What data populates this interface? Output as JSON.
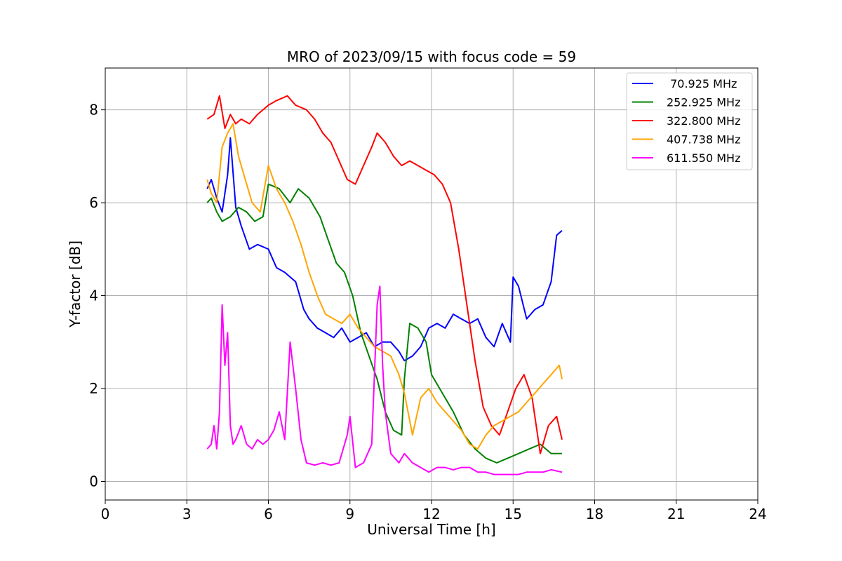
{
  "chart_data": {
    "type": "line",
    "title": "MRO of 2023/09/15 with focus code = 59",
    "xlabel": "Universal Time [h]",
    "ylabel": "Y-factor [dB]",
    "xlim": [
      0,
      24
    ],
    "ylim": [
      -0.4,
      8.9
    ],
    "xticks": [
      0,
      3,
      6,
      9,
      12,
      15,
      18,
      21,
      24
    ],
    "yticks": [
      0,
      2,
      4,
      6,
      8
    ],
    "grid": true,
    "legend_position": "top-right",
    "series": [
      {
        "name": " 70.925 MHz",
        "color": "#0000ff",
        "x": [
          3.75,
          3.9,
          4.1,
          4.3,
          4.5,
          4.6,
          4.8,
          5.0,
          5.3,
          5.6,
          6.0,
          6.3,
          6.6,
          7.0,
          7.3,
          7.5,
          7.8,
          8.1,
          8.4,
          8.7,
          9.0,
          9.3,
          9.6,
          9.9,
          10.2,
          10.5,
          10.8,
          11.0,
          11.3,
          11.6,
          11.9,
          12.2,
          12.5,
          12.8,
          13.1,
          13.4,
          13.7,
          14.0,
          14.3,
          14.6,
          14.9,
          15.0,
          15.2,
          15.5,
          15.8,
          16.1,
          16.4,
          16.6,
          16.8
        ],
        "y": [
          6.3,
          6.5,
          6.1,
          5.8,
          6.6,
          7.4,
          5.9,
          5.5,
          5.0,
          5.1,
          5.0,
          4.6,
          4.5,
          4.3,
          3.7,
          3.5,
          3.3,
          3.2,
          3.1,
          3.3,
          3.0,
          3.1,
          3.2,
          2.9,
          3.0,
          3.0,
          2.8,
          2.6,
          2.7,
          2.9,
          3.3,
          3.4,
          3.3,
          3.6,
          3.5,
          3.4,
          3.5,
          3.1,
          2.9,
          3.4,
          3.0,
          4.4,
          4.2,
          3.5,
          3.7,
          3.8,
          4.3,
          5.3,
          5.4
        ]
      },
      {
        "name": "252.925 MHz",
        "color": "#008000",
        "x": [
          3.75,
          3.9,
          4.1,
          4.3,
          4.6,
          4.9,
          5.2,
          5.5,
          5.8,
          6.0,
          6.4,
          6.8,
          7.1,
          7.5,
          7.9,
          8.2,
          8.5,
          8.8,
          9.1,
          9.4,
          9.7,
          10.0,
          10.3,
          10.6,
          10.9,
          11.0,
          11.2,
          11.5,
          11.8,
          12.0,
          12.4,
          12.8,
          13.2,
          13.6,
          14.0,
          14.4,
          14.8,
          15.2,
          15.6,
          16.0,
          16.4,
          16.8
        ],
        "y": [
          6.0,
          6.1,
          5.8,
          5.6,
          5.7,
          5.9,
          5.8,
          5.6,
          5.7,
          6.4,
          6.3,
          6.0,
          6.3,
          6.1,
          5.7,
          5.2,
          4.7,
          4.5,
          4.0,
          3.2,
          2.7,
          2.2,
          1.5,
          1.1,
          1.0,
          2.2,
          3.4,
          3.3,
          3.0,
          2.3,
          1.9,
          1.5,
          1.0,
          0.7,
          0.5,
          0.4,
          0.5,
          0.6,
          0.7,
          0.8,
          0.6,
          0.6
        ]
      },
      {
        "name": "322.800 MHz",
        "color": "#ff0000",
        "x": [
          3.75,
          4.0,
          4.2,
          4.4,
          4.6,
          4.8,
          5.0,
          5.3,
          5.6,
          6.0,
          6.3,
          6.7,
          7.0,
          7.4,
          7.7,
          8.0,
          8.3,
          8.6,
          8.9,
          9.2,
          9.5,
          9.8,
          10.0,
          10.3,
          10.6,
          10.9,
          11.2,
          11.5,
          11.8,
          12.1,
          12.4,
          12.7,
          13.0,
          13.3,
          13.6,
          13.9,
          14.2,
          14.5,
          14.8,
          15.1,
          15.4,
          15.7,
          16.0,
          16.3,
          16.6,
          16.8
        ],
        "y": [
          7.8,
          7.9,
          8.3,
          7.6,
          7.9,
          7.7,
          7.8,
          7.7,
          7.9,
          8.1,
          8.2,
          8.3,
          8.1,
          8.0,
          7.8,
          7.5,
          7.3,
          6.9,
          6.5,
          6.4,
          6.8,
          7.2,
          7.5,
          7.3,
          7.0,
          6.8,
          6.9,
          6.8,
          6.7,
          6.6,
          6.4,
          6.0,
          5.0,
          3.8,
          2.6,
          1.6,
          1.2,
          1.0,
          1.5,
          2.0,
          2.3,
          1.8,
          0.6,
          1.2,
          1.4,
          0.9
        ]
      },
      {
        "name": "407.738 MHz",
        "color": "#ffa500",
        "x": [
          3.75,
          3.9,
          4.1,
          4.3,
          4.5,
          4.7,
          4.9,
          5.1,
          5.4,
          5.7,
          6.0,
          6.3,
          6.6,
          6.9,
          7.2,
          7.5,
          7.8,
          8.1,
          8.4,
          8.7,
          9.0,
          9.3,
          9.6,
          9.9,
          10.2,
          10.5,
          10.8,
          11.0,
          11.3,
          11.6,
          11.9,
          12.2,
          12.5,
          12.8,
          13.1,
          13.4,
          13.7,
          14.0,
          14.3,
          14.6,
          14.9,
          15.2,
          15.5,
          15.8,
          16.1,
          16.4,
          16.7,
          16.8
        ],
        "y": [
          6.5,
          6.2,
          6.0,
          7.2,
          7.5,
          7.7,
          7.0,
          6.6,
          6.0,
          5.8,
          6.8,
          6.3,
          6.0,
          5.6,
          5.1,
          4.5,
          4.0,
          3.6,
          3.5,
          3.4,
          3.6,
          3.3,
          3.1,
          2.9,
          2.8,
          2.7,
          2.3,
          1.9,
          1.0,
          1.8,
          2.0,
          1.7,
          1.5,
          1.3,
          1.1,
          0.8,
          0.7,
          1.0,
          1.2,
          1.3,
          1.4,
          1.5,
          1.7,
          1.9,
          2.1,
          2.3,
          2.5,
          2.2
        ]
      },
      {
        "name": "611.550 MHz",
        "color": "#ff00ff",
        "x": [
          3.75,
          3.9,
          4.0,
          4.1,
          4.2,
          4.3,
          4.4,
          4.5,
          4.6,
          4.7,
          4.8,
          5.0,
          5.2,
          5.4,
          5.6,
          5.8,
          6.0,
          6.2,
          6.4,
          6.6,
          6.8,
          7.0,
          7.2,
          7.4,
          7.7,
          8.0,
          8.3,
          8.6,
          8.9,
          9.0,
          9.2,
          9.5,
          9.8,
          10.0,
          10.1,
          10.2,
          10.3,
          10.5,
          10.8,
          11.0,
          11.3,
          11.6,
          11.9,
          12.2,
          12.5,
          12.8,
          13.1,
          13.4,
          13.7,
          14.0,
          14.3,
          14.6,
          14.9,
          15.2,
          15.5,
          15.8,
          16.1,
          16.4,
          16.8
        ],
        "y": [
          0.7,
          0.8,
          1.2,
          0.7,
          1.5,
          3.8,
          2.5,
          3.2,
          1.2,
          0.8,
          0.9,
          1.2,
          0.8,
          0.7,
          0.9,
          0.8,
          0.9,
          1.1,
          1.5,
          0.9,
          3.0,
          2.0,
          0.9,
          0.4,
          0.35,
          0.4,
          0.35,
          0.4,
          1.0,
          1.4,
          0.3,
          0.4,
          0.8,
          3.8,
          4.2,
          2.5,
          1.5,
          0.6,
          0.4,
          0.6,
          0.4,
          0.3,
          0.2,
          0.3,
          0.3,
          0.25,
          0.3,
          0.3,
          0.2,
          0.2,
          0.15,
          0.15,
          0.15,
          0.15,
          0.2,
          0.2,
          0.2,
          0.25,
          0.2
        ]
      }
    ]
  }
}
